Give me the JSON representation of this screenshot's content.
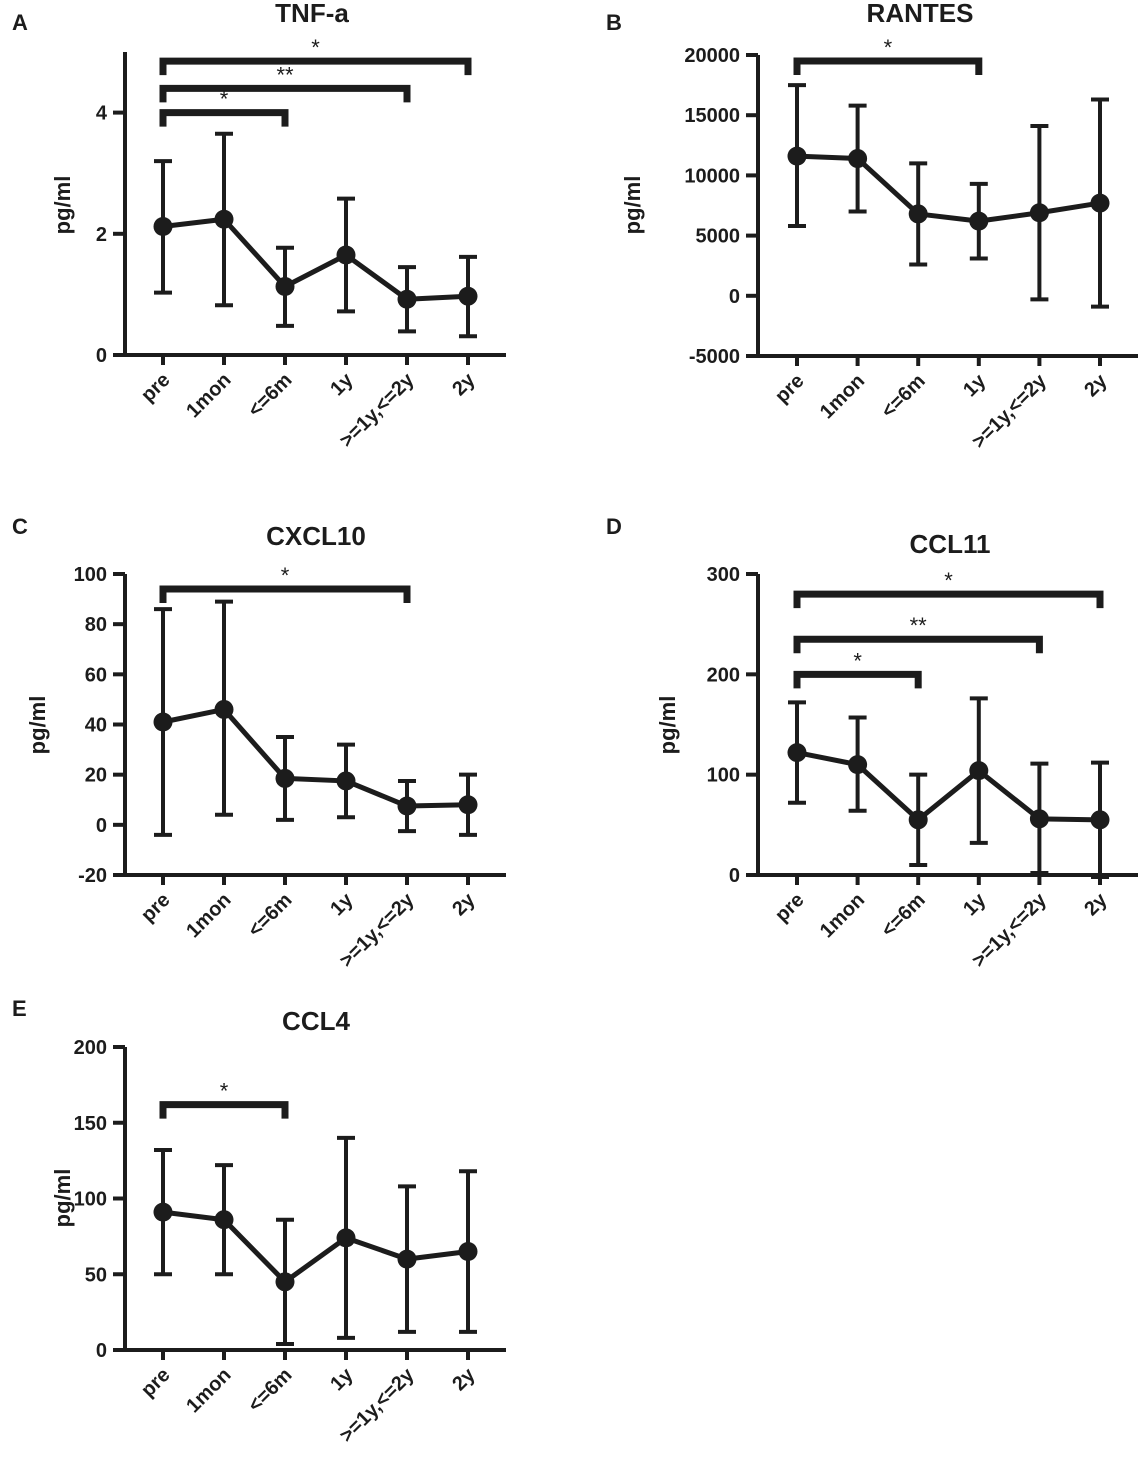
{
  "chart_data": [
    {
      "type": "line",
      "panel_label": "A",
      "title": "TNF-a",
      "ylabel": "pg/ml",
      "xlabel": "",
      "categories": [
        "pre",
        "1mon",
        "<=6m",
        "1y",
        ">=1y,<=2y",
        "2y"
      ],
      "ylim": [
        0,
        5
      ],
      "yticks": [
        0,
        2,
        4
      ],
      "series": [
        {
          "name": "TNF-a",
          "values": [
            2.12,
            2.24,
            1.13,
            1.65,
            0.92,
            0.97
          ],
          "error_upper": [
            3.2,
            3.65,
            1.77,
            2.58,
            1.45,
            1.62
          ],
          "error_lower": [
            1.03,
            0.82,
            0.48,
            0.72,
            0.39,
            0.31
          ]
        }
      ],
      "significance": [
        {
          "from": 0,
          "to": 2,
          "label": "*",
          "level": 4.0
        },
        {
          "from": 0,
          "to": 4,
          "label": "**",
          "level": 4.4
        },
        {
          "from": 0,
          "to": 5,
          "label": "*",
          "level": 4.85
        }
      ]
    },
    {
      "type": "line",
      "panel_label": "B",
      "title": "RANTES",
      "ylabel": "pg/ml",
      "xlabel": "",
      "categories": [
        "pre",
        "1mon",
        "<=6m",
        "1y",
        ">=1y,<=2y",
        "2y"
      ],
      "ylim": [
        -5000,
        20000
      ],
      "yticks": [
        -5000,
        0,
        5000,
        10000,
        15000,
        20000
      ],
      "series": [
        {
          "name": "RANTES",
          "values": [
            11600,
            11400,
            6800,
            6200,
            6900,
            7700
          ],
          "error_upper": [
            17500,
            15800,
            11000,
            9300,
            14100,
            16300
          ],
          "error_lower": [
            5800,
            7000,
            2600,
            3100,
            -300,
            -900
          ]
        }
      ],
      "significance": [
        {
          "from": 0,
          "to": 3,
          "label": "*",
          "level": 19500
        }
      ]
    },
    {
      "type": "line",
      "panel_label": "C",
      "title": "CXCL10",
      "ylabel": "pg/ml",
      "xlabel": "",
      "categories": [
        "pre",
        "1mon",
        "<=6m",
        "1y",
        ">=1y,<=2y",
        "2y"
      ],
      "ylim": [
        -20,
        100
      ],
      "yticks": [
        -20,
        0,
        20,
        40,
        60,
        80,
        100
      ],
      "series": [
        {
          "name": "CXCL10",
          "values": [
            41,
            46,
            18.5,
            17.5,
            7.5,
            8
          ],
          "error_upper": [
            86,
            89,
            35,
            32,
            17.5,
            20
          ],
          "error_lower": [
            -4,
            4,
            2,
            3,
            -2.5,
            -4
          ]
        }
      ],
      "significance": [
        {
          "from": 0,
          "to": 4,
          "label": "*",
          "level": 94
        }
      ]
    },
    {
      "type": "line",
      "panel_label": "D",
      "title": "CCL11",
      "ylabel": "pg/ml",
      "xlabel": "",
      "categories": [
        "pre",
        "1mon",
        "<=6m",
        "1y",
        ">=1y,<=2y",
        "2y"
      ],
      "ylim": [
        0,
        300
      ],
      "yticks": [
        0,
        100,
        200,
        300
      ],
      "series": [
        {
          "name": "CCL11",
          "values": [
            122,
            110,
            55,
            104,
            56,
            55
          ],
          "error_upper": [
            172,
            157,
            100,
            176,
            111,
            112
          ],
          "error_lower": [
            72,
            64,
            10,
            32,
            2,
            -2
          ]
        }
      ],
      "significance": [
        {
          "from": 0,
          "to": 2,
          "label": "*",
          "level": 200
        },
        {
          "from": 0,
          "to": 4,
          "label": "**",
          "level": 235
        },
        {
          "from": 0,
          "to": 5,
          "label": "*",
          "level": 280
        }
      ]
    },
    {
      "type": "line",
      "panel_label": "E",
      "title": "CCL4",
      "ylabel": "pg/ml",
      "xlabel": "",
      "categories": [
        "pre",
        "1mon",
        "<=6m",
        "1y",
        ">=1y,<=2y",
        "2y"
      ],
      "ylim": [
        0,
        200
      ],
      "yticks": [
        0,
        50,
        100,
        150,
        200
      ],
      "series": [
        {
          "name": "CCL4",
          "values": [
            91,
            86,
            45,
            74,
            60,
            65
          ],
          "error_upper": [
            132,
            122,
            86,
            140,
            108,
            118
          ],
          "error_lower": [
            50,
            50,
            4,
            8,
            12,
            12
          ]
        }
      ],
      "significance": [
        {
          "from": 0,
          "to": 2,
          "label": "*",
          "level": 162
        }
      ]
    }
  ],
  "colors": {
    "line": "#1c1c1c",
    "background": "#ffffff"
  }
}
